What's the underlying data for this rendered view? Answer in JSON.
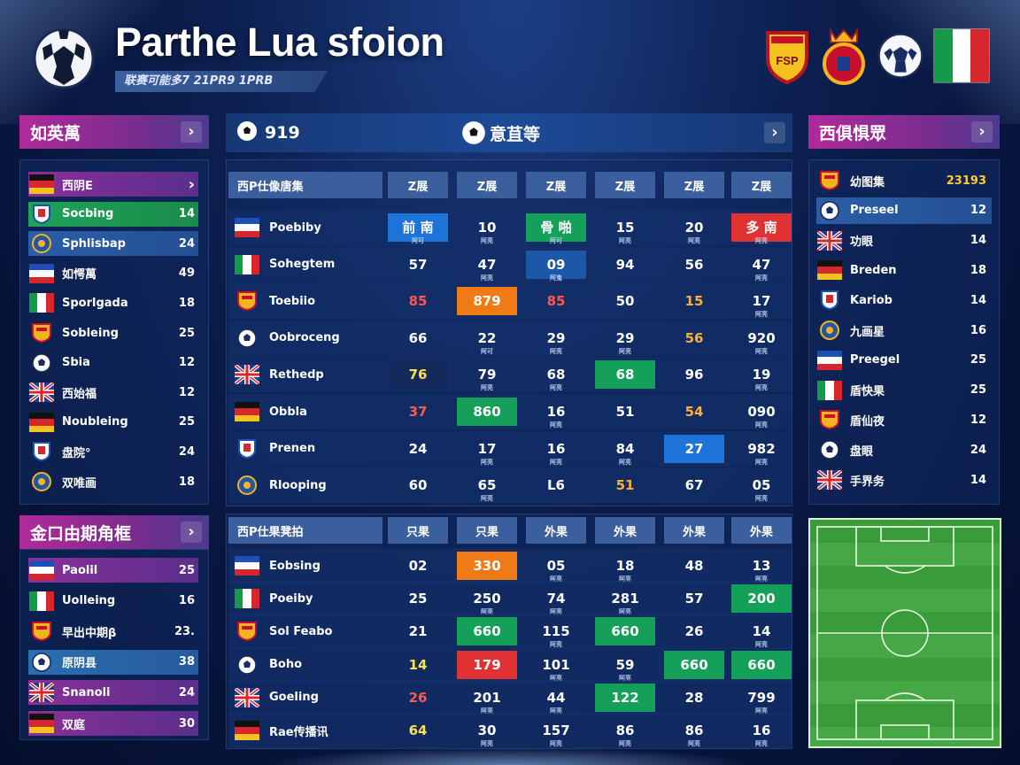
{
  "header": {
    "title": "Parthe Lua sfoion",
    "subtitle": "联赛可能多7 21PR9 1PRB"
  },
  "left_top": {
    "title": "如英萬",
    "items": [
      {
        "name": "西阴E",
        "value": "",
        "style": "purple"
      },
      {
        "name": "Socbing",
        "value": "14",
        "style": "green"
      },
      {
        "name": "Sphlisbap",
        "value": "24",
        "style": "blue"
      },
      {
        "name": "如愕萬",
        "value": "49",
        "style": ""
      },
      {
        "name": "Sporlgada",
        "value": "18",
        "style": ""
      },
      {
        "name": "Sobleing",
        "value": "25",
        "style": ""
      },
      {
        "name": "Sbia",
        "value": "12",
        "style": ""
      },
      {
        "name": "西始福",
        "value": "12",
        "style": ""
      },
      {
        "name": "Noubleing",
        "value": "25",
        "style": ""
      },
      {
        "name": "盘院°",
        "value": "24",
        "style": ""
      },
      {
        "name": "双唯画",
        "value": "18",
        "style": ""
      }
    ]
  },
  "left_bottom": {
    "title": "金口由期角框",
    "items": [
      {
        "name": "Paolil",
        "value": "25",
        "style": "purple"
      },
      {
        "name": "Uolleing",
        "value": "16",
        "style": ""
      },
      {
        "name": "早出中期β",
        "value": "23.",
        "style": ""
      },
      {
        "name": "原阴县",
        "value": "38",
        "style": "teal"
      },
      {
        "name": "Snanoli",
        "value": "24",
        "style": "purple"
      },
      {
        "name": "双庭",
        "value": "30",
        "style": "purple"
      }
    ]
  },
  "center": {
    "tab_left": "919",
    "tab_title": "意苴等",
    "table1": {
      "header_first": "西P仕像唐集",
      "headers": [
        "Z展",
        "Z展",
        "Z展",
        "Z展",
        "Z展",
        "Z展"
      ],
      "rows": [
        {
          "team": "Poebiby",
          "cells": [
            {
              "v": "前 南",
              "s": "阿可",
              "c": "c-blue"
            },
            {
              "v": "10",
              "s": "阿亮"
            },
            {
              "v": "骨 啪",
              "s": "阿可",
              "c": "c-green"
            },
            {
              "v": "15",
              "s": "阿亮"
            },
            {
              "v": "20",
              "s": "阿亮"
            },
            {
              "v": "多 南",
              "s": "阿亮",
              "c": "c-red"
            }
          ]
        },
        {
          "team": "Sohegtem",
          "cells": [
            {
              "v": "57",
              "s": ""
            },
            {
              "v": "47",
              "s": "阿亮"
            },
            {
              "v": "09",
              "s": "阿鬼",
              "c": "c-mid"
            },
            {
              "v": "94",
              "s": ""
            },
            {
              "v": "56",
              "s": ""
            },
            {
              "v": "47",
              "s": "阿亮"
            }
          ]
        },
        {
          "team": "Toebiio",
          "cells": [
            {
              "v": "85",
              "s": "",
              "t": "t-red"
            },
            {
              "v": "879",
              "s": "",
              "c": "c-orange"
            },
            {
              "v": "85",
              "s": "",
              "t": "t-red"
            },
            {
              "v": "50",
              "s": ""
            },
            {
              "v": "15",
              "s": "",
              "t": "t-orange"
            },
            {
              "v": "17",
              "s": "阿亮"
            }
          ]
        },
        {
          "team": "Oobroceng",
          "cells": [
            {
              "v": "66",
              "s": ""
            },
            {
              "v": "22",
              "s": "阿可"
            },
            {
              "v": "29",
              "s": "阿亮"
            },
            {
              "v": "29",
              "s": "阿亮"
            },
            {
              "v": "56",
              "s": "",
              "t": "t-orange"
            },
            {
              "v": "920",
              "s": "阿亮"
            }
          ]
        },
        {
          "team": "Rethedp",
          "cells": [
            {
              "v": "76",
              "s": "",
              "c": "c-dark",
              "t": "t-yellow"
            },
            {
              "v": "79",
              "s": "阿亮"
            },
            {
              "v": "68",
              "s": "阿亮"
            },
            {
              "v": "68",
              "s": "",
              "c": "c-green"
            },
            {
              "v": "96",
              "s": ""
            },
            {
              "v": "19",
              "s": "阿亮"
            }
          ]
        },
        {
          "team": "Obbla",
          "cells": [
            {
              "v": "37",
              "s": "",
              "t": "t-red"
            },
            {
              "v": "860",
              "s": "",
              "c": "c-green"
            },
            {
              "v": "16",
              "s": "阿亮"
            },
            {
              "v": "51",
              "s": ""
            },
            {
              "v": "54",
              "s": "",
              "t": "t-orange"
            },
            {
              "v": "090",
              "s": "阿亮"
            }
          ]
        },
        {
          "team": "Prenen",
          "cells": [
            {
              "v": "24",
              "s": ""
            },
            {
              "v": "17",
              "s": "阿亮"
            },
            {
              "v": "16",
              "s": "阿亮"
            },
            {
              "v": "84",
              "s": "阿亮"
            },
            {
              "v": "27",
              "s": "",
              "c": "c-blue"
            },
            {
              "v": "982",
              "s": "阿亮"
            }
          ]
        },
        {
          "team": "Rlooping",
          "cells": [
            {
              "v": "60",
              "s": ""
            },
            {
              "v": "65",
              "s": "阿亮"
            },
            {
              "v": "L6",
              "s": ""
            },
            {
              "v": "51",
              "s": "",
              "t": "t-orange"
            },
            {
              "v": "67",
              "s": ""
            },
            {
              "v": "05",
              "s": "阿亮"
            }
          ]
        }
      ]
    },
    "table2": {
      "header_first": "西P仕果凳拍",
      "headers": [
        "只果",
        "只果",
        "外果",
        "外果",
        "外果",
        "外果"
      ],
      "rows": [
        {
          "team": "Eobsing",
          "cells": [
            {
              "v": "02",
              "s": ""
            },
            {
              "v": "330",
              "s": "",
              "c": "c-orange"
            },
            {
              "v": "05",
              "s": "阿亮"
            },
            {
              "v": "18",
              "s": "阿亮"
            },
            {
              "v": "48",
              "s": ""
            },
            {
              "v": "13",
              "s": "阿亮"
            }
          ]
        },
        {
          "team": "Poeiby",
          "cells": [
            {
              "v": "25",
              "s": ""
            },
            {
              "v": "250",
              "s": "阿亮"
            },
            {
              "v": "74",
              "s": "阿亮"
            },
            {
              "v": "281",
              "s": "阿亮"
            },
            {
              "v": "57",
              "s": ""
            },
            {
              "v": "200",
              "s": "",
              "c": "c-green"
            }
          ]
        },
        {
          "team": "Sol Feabo",
          "cells": [
            {
              "v": "21",
              "s": ""
            },
            {
              "v": "660",
              "s": "",
              "c": "c-green"
            },
            {
              "v": "115",
              "s": "阿亮"
            },
            {
              "v": "660",
              "s": "",
              "c": "c-green"
            },
            {
              "v": "26",
              "s": ""
            },
            {
              "v": "14",
              "s": "阿亮"
            }
          ]
        },
        {
          "team": "Boho",
          "cells": [
            {
              "v": "14",
              "s": "",
              "t": "t-yellow"
            },
            {
              "v": "179",
              "s": "",
              "c": "c-red"
            },
            {
              "v": "101",
              "s": "阿亮"
            },
            {
              "v": "59",
              "s": "阿亮"
            },
            {
              "v": "660",
              "s": "",
              "c": "c-green"
            },
            {
              "v": "660",
              "s": "",
              "c": "c-green"
            }
          ]
        },
        {
          "team": "Goeling",
          "cells": [
            {
              "v": "26",
              "s": "",
              "t": "t-red"
            },
            {
              "v": "201",
              "s": "阿亮"
            },
            {
              "v": "44",
              "s": "阿亮"
            },
            {
              "v": "122",
              "s": "",
              "c": "c-green"
            },
            {
              "v": "28",
              "s": ""
            },
            {
              "v": "799",
              "s": "阿亮"
            }
          ]
        },
        {
          "team": "Rae传播讯",
          "cells": [
            {
              "v": "64",
              "s": "",
              "t": "t-yellow"
            },
            {
              "v": "30",
              "s": "阿亮"
            },
            {
              "v": "157",
              "s": "阿亮"
            },
            {
              "v": "86",
              "s": "阿亮"
            },
            {
              "v": "86",
              "s": "阿亮"
            },
            {
              "v": "16",
              "s": "阿亮"
            }
          ]
        }
      ]
    }
  },
  "right": {
    "title": "西俱惧眾",
    "items": [
      {
        "name": "幼图集",
        "value": "23193",
        "accent": true
      },
      {
        "name": "Preseel",
        "value": "12",
        "hl": true
      },
      {
        "name": "功眼",
        "value": "14"
      },
      {
        "name": "Breden",
        "value": "18"
      },
      {
        "name": "Kariob",
        "value": "14"
      },
      {
        "name": "九画星",
        "value": "16"
      },
      {
        "name": "Preegel",
        "value": "25"
      },
      {
        "name": "盾快果",
        "value": "25"
      },
      {
        "name": "盾仙夜",
        "value": "12"
      },
      {
        "name": "盘眼",
        "value": "24"
      },
      {
        "name": "手界务",
        "value": "14"
      }
    ]
  },
  "colors": {
    "accent_gold": "#ffcc33",
    "magenta": "#b02a9a",
    "table_head": "#3a5f9c"
  }
}
